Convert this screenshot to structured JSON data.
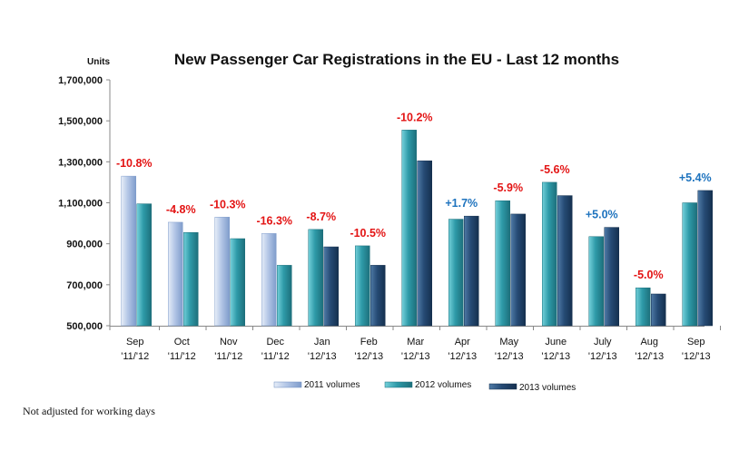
{
  "chart_data": {
    "type": "bar",
    "title": "New Passenger Car Registrations in the EU - Last 12 months",
    "ylabel": "Units",
    "ylim": [
      500000,
      1700000
    ],
    "yticks": [
      "500,000",
      "700,000",
      "900,000",
      "1,100,000",
      "1,300,000",
      "1,500,000",
      "1,700,000"
    ],
    "ytick_values": [
      500000,
      700000,
      900000,
      1100000,
      1300000,
      1500000,
      1700000
    ],
    "categories": [
      [
        "Sep",
        "'11/'12"
      ],
      [
        "Oct",
        "'11/'12"
      ],
      [
        "Nov",
        "'11/'12"
      ],
      [
        "Dec",
        "'11/'12"
      ],
      [
        "Jan",
        "'12/'13"
      ],
      [
        "Feb",
        "'12/'13"
      ],
      [
        "Mar",
        "'12/'13"
      ],
      [
        "Apr",
        "'12/'13"
      ],
      [
        "May",
        "'12/'13"
      ],
      [
        "June",
        "'12/'13"
      ],
      [
        "July",
        "'12/'13"
      ],
      [
        "Aug",
        "'12/'13"
      ],
      [
        "Sep",
        "'12/'13"
      ]
    ],
    "series": [
      {
        "name": "2011 volumes",
        "values": [
          1230000,
          1005000,
          1030000,
          950000,
          null,
          null,
          null,
          null,
          null,
          null,
          null,
          null,
          null
        ]
      },
      {
        "name": "2012 volumes",
        "values": [
          1095000,
          955000,
          925000,
          795000,
          970000,
          890000,
          1455000,
          1020000,
          1110000,
          1200000,
          935000,
          685000,
          1100000
        ]
      },
      {
        "name": "2013 volumes",
        "values": [
          null,
          null,
          null,
          null,
          885000,
          795000,
          1305000,
          1035000,
          1045000,
          1135000,
          980000,
          655000,
          1160000
        ]
      }
    ],
    "change_labels": [
      "-10.8%",
      "-4.8%",
      "-10.3%",
      "-16.3%",
      "-8.7%",
      "-10.5%",
      "-10.2%",
      "+1.7%",
      "-5.9%",
      "-5.6%",
      "+5.0%",
      "-5.0%",
      "+5.4%"
    ],
    "grid": false,
    "legend_position": "bottom",
    "colors": {
      "2011": "#a9bedf",
      "2011_dark": "#6f8dbf",
      "2012": "#2b8c9a",
      "2012_light": "#5fc0cc",
      "2013": "#1f3d63",
      "2013_light": "#3f6690",
      "negative": "#e31414",
      "positive": "#1e73be"
    }
  },
  "footnote": "Not adjusted for working days"
}
